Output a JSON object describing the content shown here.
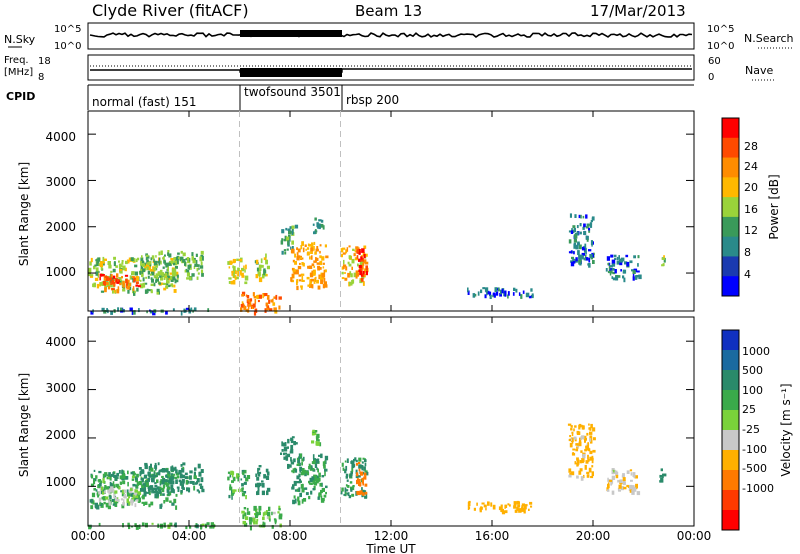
{
  "header": {
    "title": "Clyde River (fitACF)",
    "beam": "Beam 13",
    "date": "17/Mar/2013"
  },
  "top_strips": {
    "nsky_label": "N.Sky",
    "nsky_ticks": [
      "10^5",
      "10^0"
    ],
    "nsearch_label": "N.Search",
    "nsearch_ticks": [
      "10^5",
      "10^0"
    ],
    "freq_label_1": "Freq.",
    "freq_label_2": "[MHz]",
    "freq_ticks": [
      "18",
      "8"
    ],
    "nave_label": "Nave",
    "nave_ticks": [
      "60",
      "0"
    ],
    "cpid_label": "CPID",
    "modes": [
      {
        "label": "normal (fast) 151",
        "start": 0
      },
      {
        "label": "twofsound 3501",
        "start": 6
      },
      {
        "label": "rbsp 200",
        "start": 10
      }
    ]
  },
  "x_axis": {
    "label": "Time UT",
    "ticks": [
      "00:00",
      "04:00",
      "08:00",
      "12:00",
      "16:00",
      "20:00",
      "00:00"
    ],
    "tick_hours": [
      0,
      4,
      8,
      12,
      16,
      20,
      24
    ]
  },
  "y_axis": {
    "label": "Slant Range [km]",
    "ticks": [
      "1000",
      "2000",
      "3000",
      "4000"
    ],
    "tick_values": [
      1000,
      2000,
      3000,
      4000
    ]
  },
  "power_bar": {
    "label": "Power [dB]",
    "ticks": [
      "28",
      "24",
      "20",
      "16",
      "12",
      "8",
      "4"
    ],
    "colors": [
      "#ff0000",
      "#ff4a00",
      "#ff8c00",
      "#ffb800",
      "#9ad33a",
      "#3a9a5a",
      "#2a8a8a",
      "#1a3ab0",
      "#0000ff"
    ]
  },
  "velocity_bar": {
    "label": "Velocity [m s⁻¹]",
    "ticks": [
      "1000",
      "500",
      "100",
      "25",
      "-25",
      "-100",
      "-500",
      "-1000"
    ],
    "colors": [
      "#1030c0",
      "#1a6aa0",
      "#2a8a6a",
      "#3aaa4a",
      "#7ad23a",
      "#c8c8c8",
      "#ffb000",
      "#ff7a00",
      "#ff3a00",
      "#ff0000"
    ]
  },
  "chart_data": {
    "type": "heatmap",
    "title": "Clyde River (fitACF)",
    "xlabel": "Time UT",
    "ylabel": "Slant Range [km]",
    "xlim": [
      0,
      24
    ],
    "ylim": [
      180,
      4500
    ],
    "mode_boundaries_hours": [
      6,
      10
    ],
    "panels": [
      {
        "name": "Power",
        "units": "dB",
        "colorbar_range": [
          0,
          32
        ]
      },
      {
        "name": "Velocity",
        "units": "m s-1",
        "colorbar_range": [
          -1000,
          1000
        ]
      }
    ],
    "scatter_regions": [
      {
        "t0": 0.0,
        "t1": 3.5,
        "r0": 600,
        "r1": 1350,
        "power": 14,
        "velocity": 80
      },
      {
        "t0": 0.4,
        "t1": 2.0,
        "r0": 650,
        "r1": 1000,
        "power": 26,
        "velocity": -40
      },
      {
        "t0": 0.0,
        "t1": 5.0,
        "r0": 180,
        "r1": 260,
        "power": 6,
        "velocity": 50
      },
      {
        "t0": 2.0,
        "t1": 4.5,
        "r0": 900,
        "r1": 1500,
        "power": 12,
        "velocity": 150
      },
      {
        "t0": 5.5,
        "t1": 6.3,
        "r0": 800,
        "r1": 1350,
        "power": 16,
        "velocity": 60
      },
      {
        "t0": 6.0,
        "t1": 7.6,
        "r0": 180,
        "r1": 600,
        "power": 22,
        "velocity": 30
      },
      {
        "t0": 6.6,
        "t1": 7.1,
        "r0": 900,
        "r1": 1450,
        "power": 14,
        "velocity": 200
      },
      {
        "t0": 7.6,
        "t1": 8.2,
        "r0": 1450,
        "r1": 2050,
        "power": 10,
        "velocity": 300
      },
      {
        "t0": 8.0,
        "t1": 9.4,
        "r0": 700,
        "r1": 1700,
        "power": 20,
        "velocity": 90
      },
      {
        "t0": 8.8,
        "t1": 9.3,
        "r0": 1900,
        "r1": 2200,
        "power": 8,
        "velocity": 40
      },
      {
        "t0": 10.0,
        "t1": 11.0,
        "r0": 800,
        "r1": 1600,
        "power": 18,
        "velocity": 120
      },
      {
        "t0": 10.6,
        "t1": 11.0,
        "r0": 850,
        "r1": 1550,
        "power": 28,
        "velocity": -900
      },
      {
        "t0": 15.0,
        "t1": 17.6,
        "r0": 500,
        "r1": 700,
        "power": 5,
        "velocity": -200
      },
      {
        "t0": 19.0,
        "t1": 20.0,
        "r0": 1200,
        "r1": 2300,
        "power": 6,
        "velocity": -150
      },
      {
        "t0": 20.5,
        "t1": 21.8,
        "r0": 900,
        "r1": 1400,
        "power": 6,
        "velocity": -80
      },
      {
        "t0": 22.6,
        "t1": 22.8,
        "r0": 1100,
        "r1": 1400,
        "power": 14,
        "velocity": 200
      }
    ]
  }
}
